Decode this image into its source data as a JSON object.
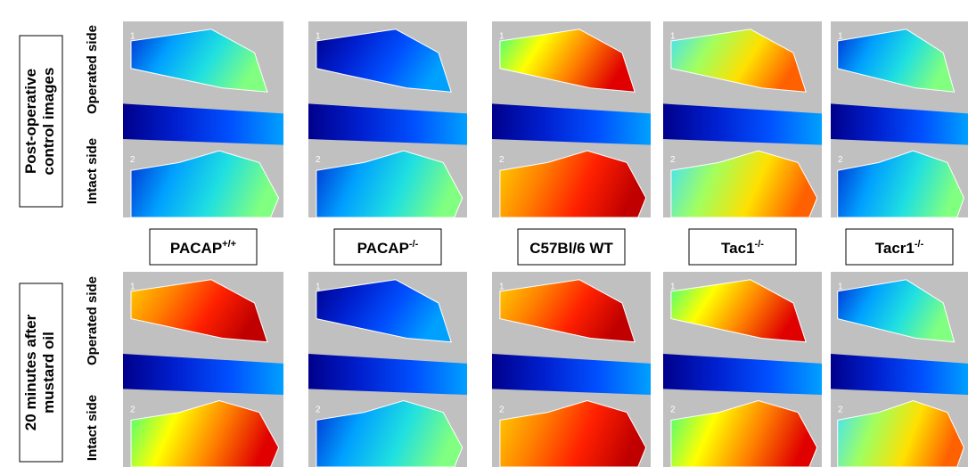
{
  "row_labels": [
    [
      "Post-operative",
      "control images"
    ],
    [
      "20 minutes after",
      "mustard oil"
    ]
  ],
  "side_labels": [
    "Operated side",
    "Intact side"
  ],
  "columns": [
    {
      "text": "PACAP",
      "sup": "+/+"
    },
    {
      "text": "PACAP",
      "sup": "-/-"
    },
    {
      "text": "C57Bl/6 WT"
    },
    {
      "text": "Tac1",
      "sup": "-/-"
    },
    {
      "text": "Tacr1",
      "sup": "-/-"
    }
  ],
  "region_labels": [
    "1",
    "2"
  ]
}
